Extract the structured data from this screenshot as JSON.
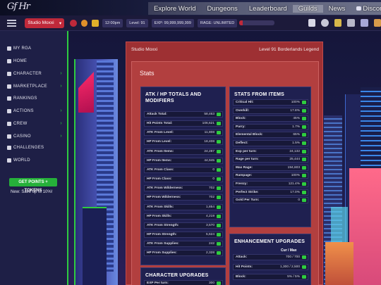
{
  "header": {
    "logo": "Gf Hr",
    "nav": [
      "Explore World",
      "Dungeons",
      "Leaderboard",
      "Guilds",
      "News",
      "Discord"
    ]
  },
  "statusbar": {
    "character": "Studio Moxxi",
    "time": "12:00pm",
    "level": "Level: 91",
    "exp": "EXP: 99,999,999,999",
    "rage": "RAGE: UNLIMITED",
    "rage_fill_percent": 10
  },
  "sidebar": {
    "items": [
      {
        "label": "MY RGA",
        "chevron": false
      },
      {
        "label": "HOME",
        "chevron": false
      },
      {
        "label": "CHARACTER",
        "chevron": true
      },
      {
        "label": "MARKETPLACE",
        "chevron": true
      },
      {
        "label": "RANKINGS",
        "chevron": false
      },
      {
        "label": "ACTIONS",
        "chevron": true
      },
      {
        "label": "CREW",
        "chevron": true
      },
      {
        "label": "CASINO",
        "chevron": true
      },
      {
        "label": "CHALLENGES",
        "chevron": false
      },
      {
        "label": "WORLD",
        "chevron": false
      }
    ],
    "points_button": "GET POINTS + TOKENS",
    "points_sub": "New: Save up to 10%!"
  },
  "panel": {
    "character": "Studio Moxxi",
    "level_text": "Level 91 Borderlands Legend",
    "stats_title": "Stats",
    "atk_hp": {
      "title": "ATK / HP TOTALS AND MODIFIERS",
      "rows": [
        {
          "label": "Attack Total:",
          "value": "58,463"
        },
        {
          "label": "Hit Points Total:",
          "value": "106,621"
        },
        {
          "label": "ATK From Level:",
          "value": "11,808"
        },
        {
          "label": "HP From Level:",
          "value": "18,408"
        },
        {
          "label": "ATK From Items:",
          "value": "24,287"
        },
        {
          "label": "HP From Items:",
          "value": "44,945"
        },
        {
          "label": "ATK From Class:",
          "value": "0"
        },
        {
          "label": "HP From Class:",
          "value": "0"
        },
        {
          "label": "ATK From Wilderness:",
          "value": "702"
        },
        {
          "label": "HP From Wilderness:",
          "value": "702"
        },
        {
          "label": "ATK From Skills:",
          "value": "1,854"
        },
        {
          "label": "HP From Skills:",
          "value": "4,219"
        },
        {
          "label": "ATK From Strength:",
          "value": "3,570"
        },
        {
          "label": "HP From Strength:",
          "value": "5,624"
        },
        {
          "label": "ATK From Supplies:",
          "value": "242"
        },
        {
          "label": "HP From Supplies:",
          "value": "2,328"
        }
      ]
    },
    "items_stats": {
      "title": "STATS FROM ITEMS",
      "rows": [
        {
          "label": "Critical Hit:",
          "value": "100%"
        },
        {
          "label": "Overkill:",
          "value": "17.8%"
        },
        {
          "label": "Block:",
          "value": "45%"
        },
        {
          "label": "Parry:",
          "value": "1.7%"
        },
        {
          "label": "Elemental Block:",
          "value": "65%"
        },
        {
          "label": "Deflect:",
          "value": "1.5%"
        },
        {
          "label": "Exp per turn:",
          "value": "24,132"
        },
        {
          "label": "Rage per turn:",
          "value": "25,444"
        },
        {
          "label": "Max Rage:",
          "value": "194,603"
        },
        {
          "label": "Rampage:",
          "value": "100%"
        },
        {
          "label": "Frenzy:",
          "value": "121.4%"
        },
        {
          "label": "Perfect Strike:",
          "value": "17.0%"
        },
        {
          "label": "Gold Per Turn:",
          "value": "0"
        }
      ]
    },
    "character_upgrades": {
      "title": "CHARACTER UPGRADES",
      "rows": [
        {
          "label": "EXP Per turn:",
          "value": "300"
        }
      ]
    },
    "enhancement": {
      "title": "ENHANCEMENT UPGRADES",
      "col_header": "Cur / Max",
      "rows": [
        {
          "label": "Attack:",
          "value": "700 / 700"
        },
        {
          "label": "Hit Points:",
          "value": "1,300 / 2,500"
        },
        {
          "label": "Block:",
          "value": "5% / 5%"
        }
      ]
    }
  }
}
